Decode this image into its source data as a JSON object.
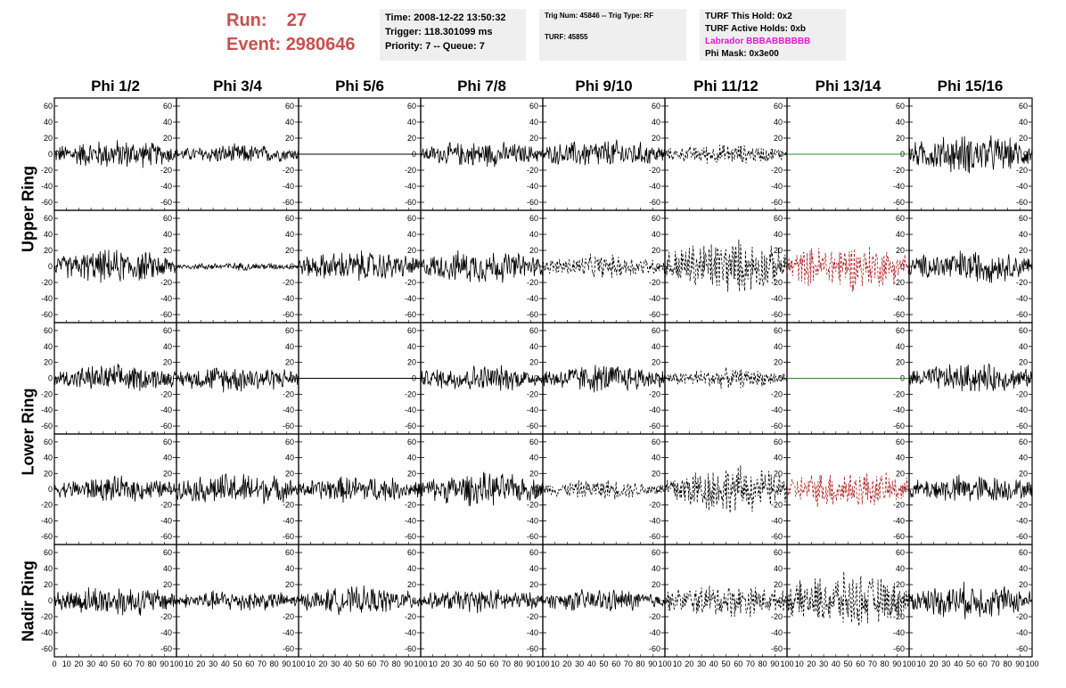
{
  "run": {
    "run_label": "Run:",
    "run_value": "27",
    "event_label": "Event:",
    "event_value": "2980646"
  },
  "time_box": {
    "time": "Time: 2008-12-22 13:50:32",
    "trigger": "Trigger: 118.301099 ms",
    "priority": "Priority: 7 -- Queue: 7"
  },
  "trig_box": {
    "trig": "Trig Num: 45846 -- Trig Type: RF",
    "turf": "TURF: 45855"
  },
  "turf_box": {
    "this_hold": "TURF This Hold: 0x2",
    "active_holds": "TURF Active Holds: 0xb",
    "labrador": "Labrador BBBABBBBBB",
    "phi_mask": "Phi Mask: 0x3e00"
  },
  "colors": {
    "run_text": "#c8504f",
    "info_bg": "#efefef",
    "labrador": "#e218d8",
    "trace": "#000000",
    "flat_green": "#2e8b2e",
    "red_trace": "#b22222"
  },
  "chart_data": {
    "type": "line",
    "columns": [
      "Phi 1/2",
      "Phi 3/4",
      "Phi 5/6",
      "Phi 7/8",
      "Phi 9/10",
      "Phi 11/12",
      "Phi 13/14",
      "Phi 15/16"
    ],
    "ring_labels": [
      "Upper Ring",
      "Lower Ring",
      "Nadir Ring"
    ],
    "xlim": [
      0,
      100
    ],
    "ylim": [
      -70,
      70
    ],
    "x_ticks": [
      "0",
      "10",
      "20",
      "30",
      "40",
      "50",
      "60",
      "70",
      "80",
      "90",
      "100"
    ],
    "y_ticks": [
      "60",
      "40",
      "20",
      "0",
      "-20",
      "-40",
      "-60"
    ],
    "panels": [
      [
        {
          "style": "solid",
          "color": "black",
          "amp": 15
        },
        {
          "style": "solid",
          "color": "black",
          "amp": 10
        },
        {
          "style": "flat",
          "color": "black",
          "amp": 0
        },
        {
          "style": "solid",
          "color": "black",
          "amp": 13
        },
        {
          "style": "solid",
          "color": "black",
          "amp": 15
        },
        {
          "style": "dashed",
          "color": "black",
          "amp": 10
        },
        {
          "style": "flat",
          "color": "green",
          "amp": 0
        },
        {
          "style": "solid",
          "color": "black",
          "amp": 20
        }
      ],
      [
        {
          "style": "solid",
          "color": "black",
          "amp": 17
        },
        {
          "style": "solid",
          "color": "black",
          "amp": 4
        },
        {
          "style": "solid",
          "color": "black",
          "amp": 16
        },
        {
          "style": "solid",
          "color": "black",
          "amp": 17
        },
        {
          "style": "dashed",
          "color": "black",
          "amp": 12
        },
        {
          "style": "dashed",
          "color": "black",
          "amp": 28
        },
        {
          "style": "dashed",
          "color": "red",
          "amp": 24
        },
        {
          "style": "solid",
          "color": "black",
          "amp": 17
        }
      ],
      [
        {
          "style": "solid",
          "color": "black",
          "amp": 14
        },
        {
          "style": "solid",
          "color": "black",
          "amp": 14
        },
        {
          "style": "flat",
          "color": "black",
          "amp": 0
        },
        {
          "style": "solid",
          "color": "black",
          "amp": 14
        },
        {
          "style": "solid",
          "color": "black",
          "amp": 15
        },
        {
          "style": "dashed",
          "color": "black",
          "amp": 10
        },
        {
          "style": "flat",
          "color": "green",
          "amp": 0
        },
        {
          "style": "solid",
          "color": "black",
          "amp": 15
        }
      ],
      [
        {
          "style": "solid",
          "color": "black",
          "amp": 13
        },
        {
          "style": "solid",
          "color": "black",
          "amp": 17
        },
        {
          "style": "solid",
          "color": "black",
          "amp": 14
        },
        {
          "style": "solid",
          "color": "black",
          "amp": 17
        },
        {
          "style": "dashed",
          "color": "black",
          "amp": 10
        },
        {
          "style": "dashed",
          "color": "black",
          "amp": 25
        },
        {
          "style": "dashed",
          "color": "red",
          "amp": 20
        },
        {
          "style": "solid",
          "color": "black",
          "amp": 15
        }
      ],
      [
        {
          "style": "solid",
          "color": "black",
          "amp": 16
        },
        {
          "style": "solid",
          "color": "black",
          "amp": 11
        },
        {
          "style": "solid",
          "color": "black",
          "amp": 14
        },
        {
          "style": "solid",
          "color": "black",
          "amp": 12
        },
        {
          "style": "solid",
          "color": "black",
          "amp": 12
        },
        {
          "style": "dashed",
          "color": "black",
          "amp": 17
        },
        {
          "style": "dashed",
          "color": "black",
          "amp": 27
        },
        {
          "style": "solid",
          "color": "black",
          "amp": 18
        }
      ]
    ]
  }
}
